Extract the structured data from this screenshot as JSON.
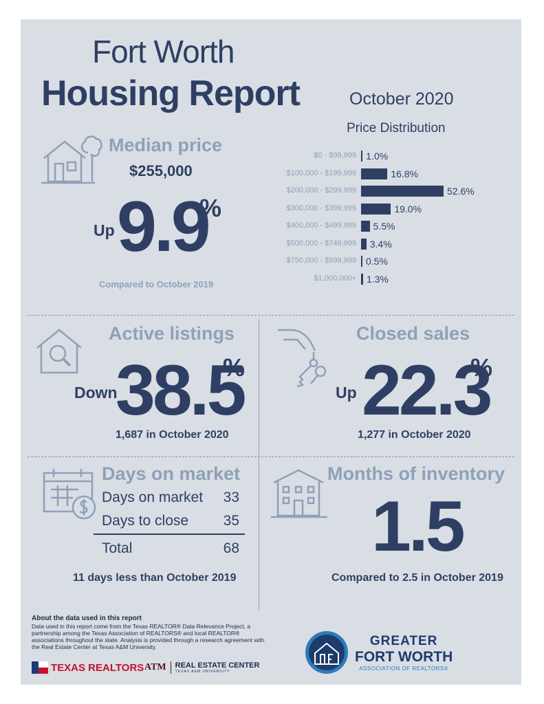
{
  "header": {
    "city": "Fort Worth",
    "report": "Housing Report",
    "month": "October 2020"
  },
  "median": {
    "header": "Median price",
    "price": "$255,000",
    "direction": "Up",
    "change": "9.9",
    "unit": "%",
    "comparison": "Compared to October 2019"
  },
  "chart_data": {
    "type": "bar",
    "title": "Price Distribution",
    "categories": [
      "$0 - $99,999",
      "$100,000 - $199,999",
      "$200,000 - $299,999",
      "$300,000 - $399,999",
      "$400,000 - $499,999",
      "$500,000 - $749,999",
      "$750,000 - $999,999",
      "$1,000,000+"
    ],
    "values": [
      1.0,
      16.8,
      52.6,
      19.0,
      5.5,
      3.4,
      0.5,
      1.3
    ],
    "value_labels": [
      "1.0%",
      "16.8%",
      "52.6%",
      "19.0%",
      "5.5%",
      "3.4%",
      "0.5%",
      "1.3%"
    ],
    "orientation": "horizontal"
  },
  "active": {
    "header": "Active listings",
    "direction": "Down",
    "change": "38.5",
    "unit": "%",
    "count": "1,687 in October 2020"
  },
  "closed": {
    "header": "Closed sales",
    "direction": "Up",
    "change": "22.3",
    "unit": "%",
    "count": "1,277 in October 2020"
  },
  "days": {
    "header": "Days on market",
    "rows": [
      {
        "label": "Days on market",
        "value": "33"
      },
      {
        "label": "Days to close",
        "value": "35"
      },
      {
        "label": "Total",
        "value": "68"
      }
    ],
    "comparison": "11 days less than October 2019"
  },
  "inventory": {
    "header": "Months of inventory",
    "value": "1.5",
    "comparison": "Compared to 2.5 in October 2019"
  },
  "about": {
    "heading": "About the data used in this report",
    "text": "Data used in this report come from the Texas REALTOR® Data Relevance Project, a partnership among the Texas Association of REALTORS® and local REALTOR® associations throughout the state. Analysis is provided through a research agreement with the Real Estate Center at Texas A&M University."
  },
  "logos": {
    "texas_realtors": "TEXAS REALTORS",
    "atm": "ATM",
    "rec": "REAL ESTATE CENTER",
    "tamu": "TEXAS A&M UNIVERSITY",
    "gfwar_1": "GREATER",
    "gfwar_2": "FORT WORTH",
    "gfwar_3": "ASSOCIATION OF REALTORS®"
  },
  "colors": {
    "background": "#d9dee5",
    "primary": "#2f3f63",
    "muted": "#8fa1b7"
  }
}
